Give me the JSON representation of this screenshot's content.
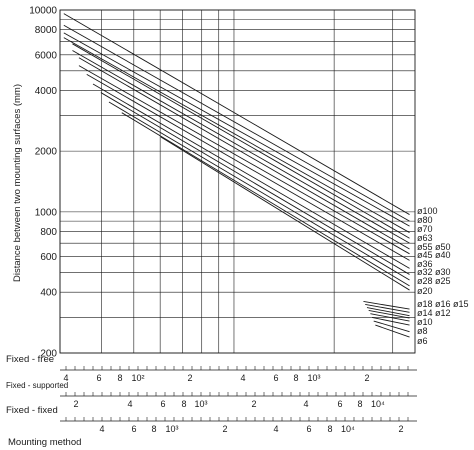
{
  "chart_data": {
    "type": "line",
    "ylabel": "Distance between two mounting surfaces (mm)",
    "y_scale": "log",
    "ylim": [
      200,
      10000
    ],
    "y_ticks": [
      {
        "value": 10000,
        "label": "10000"
      },
      {
        "value": 8000,
        "label": "8000"
      },
      {
        "value": 6000,
        "label": "6000"
      },
      {
        "value": 4000,
        "label": "4000"
      },
      {
        "value": 2000,
        "label": "2000"
      },
      {
        "value": 1000,
        "label": "1000"
      },
      {
        "value": 800,
        "label": "800"
      },
      {
        "value": 600,
        "label": "600"
      },
      {
        "value": 400,
        "label": "400"
      },
      {
        "value": 200,
        "label": "200"
      }
    ],
    "x_scale": "log",
    "xlim_fixed_free": [
      300,
      3500
    ],
    "grid": true,
    "series": [
      {
        "name": "ø100",
        "x": [
          308,
          3370
        ],
        "y": [
          9600,
          970
        ]
      },
      {
        "name": "ø80",
        "x": [
          308,
          3370
        ],
        "y": [
          8400,
          900
        ]
      },
      {
        "name": "ø70",
        "x": [
          308,
          3370
        ],
        "y": [
          7700,
          850
        ]
      },
      {
        "name": "ø63",
        "x": [
          308,
          3370
        ],
        "y": [
          7300,
          790
        ]
      },
      {
        "name": "ø55",
        "x": [
          327,
          3370
        ],
        "y": [
          6800,
          740
        ]
      },
      {
        "name": "ø50",
        "x": [
          327,
          3370
        ],
        "y": [
          6300,
          700
        ]
      },
      {
        "name": "ø45",
        "x": [
          342,
          3370
        ],
        "y": [
          5800,
          655
        ]
      },
      {
        "name": "ø40",
        "x": [
          342,
          3370
        ],
        "y": [
          5300,
          620
        ]
      },
      {
        "name": "ø36",
        "x": [
          361,
          3370
        ],
        "y": [
          4800,
          575
        ]
      },
      {
        "name": "ø32",
        "x": [
          377,
          3370
        ],
        "y": [
          4300,
          525
        ]
      },
      {
        "name": "ø30",
        "x": [
          398,
          3370
        ],
        "y": [
          3900,
          490
        ]
      },
      {
        "name": "ø28",
        "x": [
          421,
          3370
        ],
        "y": [
          3500,
          460
        ]
      },
      {
        "name": "ø25",
        "x": [
          460,
          3370
        ],
        "y": [
          3100,
          430
        ]
      },
      {
        "name": "ø20",
        "x": [
          603,
          3370
        ],
        "y": [
          2350,
          410
        ]
      },
      {
        "name": "ø18",
        "x": [
          2450,
          3370
        ],
        "y": [
          360,
          330
        ]
      },
      {
        "name": "ø16",
        "x": [
          2480,
          3370
        ],
        "y": [
          348,
          318
        ]
      },
      {
        "name": "ø15",
        "x": [
          2510,
          3370
        ],
        "y": [
          336,
          306
        ]
      },
      {
        "name": "ø14",
        "x": [
          2540,
          3370
        ],
        "y": [
          325,
          298
        ]
      },
      {
        "name": "ø12",
        "x": [
          2570,
          3370
        ],
        "y": [
          313,
          288
        ]
      },
      {
        "name": "ø10",
        "x": [
          2600,
          3370
        ],
        "y": [
          300,
          275
        ]
      },
      {
        "name": "ø8",
        "x": [
          2630,
          3370
        ],
        "y": [
          288,
          255
        ]
      },
      {
        "name": "ø6",
        "x": [
          2660,
          3370
        ],
        "y": [
          275,
          240
        ]
      }
    ],
    "mounting_scales": [
      {
        "label": "Fixed - free",
        "ticks": [
          "4",
          "6",
          "8",
          "10²",
          "2",
          "4",
          "6",
          "8",
          "10³",
          "2"
        ]
      },
      {
        "label": "Fixed - supported",
        "ticks": [
          "2",
          "4",
          "6",
          "8",
          "10³",
          "2",
          "4",
          "6",
          "8",
          "10⁴"
        ]
      },
      {
        "label": "Fixed - fixed",
        "ticks": [
          "4",
          "6",
          "8",
          "10³",
          "2",
          "4",
          "6",
          "8",
          "10⁴",
          "2"
        ]
      }
    ]
  },
  "footer": {
    "label": "Mounting method"
  }
}
